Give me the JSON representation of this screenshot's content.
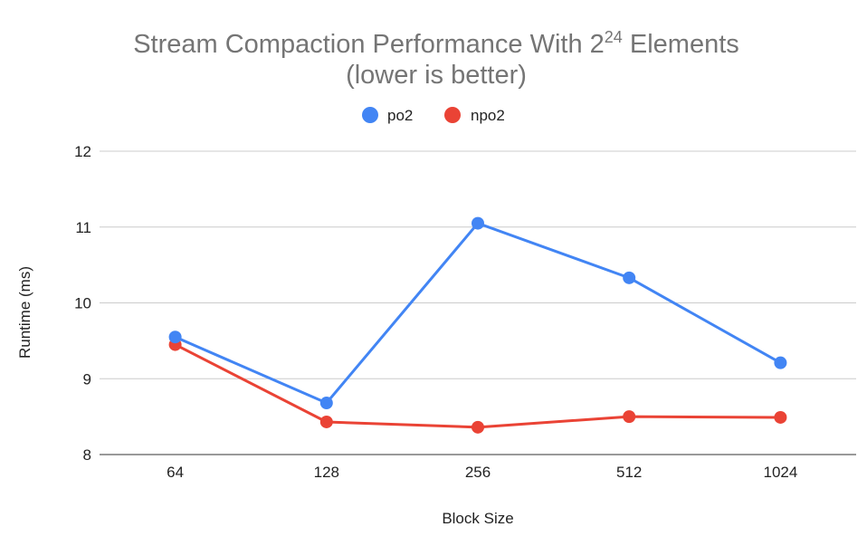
{
  "chart_data": {
    "type": "line",
    "title_main": "Stream Compaction Performance With 2",
    "title_sup": "24",
    "title_end": " Elements",
    "subtitle": "(lower is better)",
    "xlabel": "Block Size",
    "ylabel": "Runtime (ms)",
    "categories": [
      "64",
      "128",
      "256",
      "512",
      "1024"
    ],
    "ylim": [
      8,
      12
    ],
    "yticks": [
      "8",
      "9",
      "10",
      "11",
      "12"
    ],
    "grid": true,
    "legend_position": "top-center",
    "series": [
      {
        "name": "po2",
        "color": "#4285f4",
        "values": [
          9.55,
          8.68,
          11.05,
          10.33,
          9.21
        ]
      },
      {
        "name": "npo2",
        "color": "#ea4335",
        "values": [
          9.45,
          8.43,
          8.36,
          8.5,
          8.49
        ]
      }
    ]
  }
}
